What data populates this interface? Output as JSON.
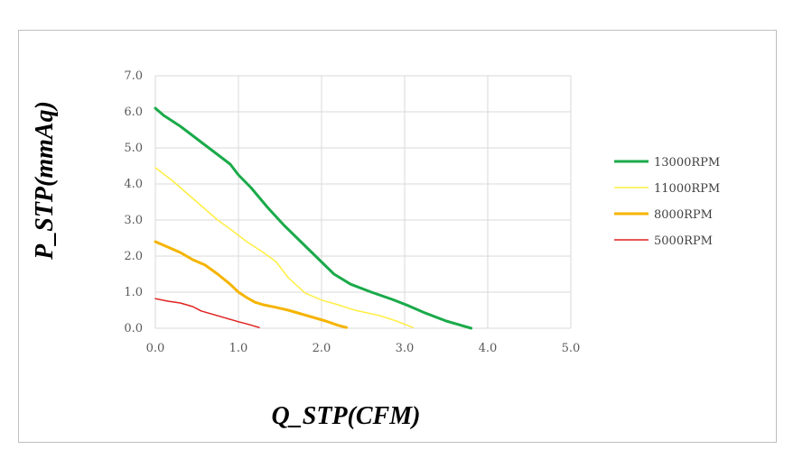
{
  "chart_data": {
    "type": "line",
    "xlabel": "Q_STP(CFM)",
    "ylabel": "P_STP(mmAq)",
    "xlim": [
      0,
      5
    ],
    "ylim": [
      0,
      7
    ],
    "xticks": [
      "0.0",
      "1.0",
      "2.0",
      "3.0",
      "4.0",
      "5.0"
    ],
    "yticks": [
      "0.0",
      "1.0",
      "2.0",
      "3.0",
      "4.0",
      "5.0",
      "6.0",
      "7.0"
    ],
    "grid": true,
    "legend_position": "right",
    "series": [
      {
        "name": "13000RPM",
        "color": "#1aaa4a",
        "width": 3,
        "points": [
          [
            0.0,
            6.1
          ],
          [
            0.1,
            5.9
          ],
          [
            0.3,
            5.6
          ],
          [
            0.5,
            5.25
          ],
          [
            0.7,
            4.9
          ],
          [
            0.9,
            4.55
          ],
          [
            1.0,
            4.25
          ],
          [
            1.15,
            3.9
          ],
          [
            1.35,
            3.35
          ],
          [
            1.55,
            2.85
          ],
          [
            1.75,
            2.4
          ],
          [
            1.95,
            1.95
          ],
          [
            2.15,
            1.5
          ],
          [
            2.35,
            1.22
          ],
          [
            2.6,
            1.0
          ],
          [
            2.85,
            0.8
          ],
          [
            3.05,
            0.62
          ],
          [
            3.25,
            0.42
          ],
          [
            3.5,
            0.2
          ],
          [
            3.8,
            0.0
          ]
        ]
      },
      {
        "name": "11000RPM",
        "color": "#ffee44",
        "width": 1.5,
        "points": [
          [
            0.0,
            4.45
          ],
          [
            0.2,
            4.1
          ],
          [
            0.4,
            3.7
          ],
          [
            0.6,
            3.3
          ],
          [
            0.75,
            3.0
          ],
          [
            0.9,
            2.75
          ],
          [
            1.1,
            2.4
          ],
          [
            1.3,
            2.1
          ],
          [
            1.45,
            1.85
          ],
          [
            1.6,
            1.4
          ],
          [
            1.8,
            0.98
          ],
          [
            2.0,
            0.78
          ],
          [
            2.2,
            0.65
          ],
          [
            2.4,
            0.5
          ],
          [
            2.7,
            0.35
          ],
          [
            2.9,
            0.2
          ],
          [
            3.1,
            0.02
          ]
        ]
      },
      {
        "name": "8000RPM",
        "color": "#f5b400",
        "width": 3,
        "points": [
          [
            0.0,
            2.4
          ],
          [
            0.15,
            2.25
          ],
          [
            0.3,
            2.1
          ],
          [
            0.45,
            1.9
          ],
          [
            0.6,
            1.75
          ],
          [
            0.75,
            1.5
          ],
          [
            0.9,
            1.22
          ],
          [
            1.0,
            1.0
          ],
          [
            1.1,
            0.85
          ],
          [
            1.2,
            0.72
          ],
          [
            1.3,
            0.65
          ],
          [
            1.45,
            0.58
          ],
          [
            1.6,
            0.5
          ],
          [
            1.75,
            0.4
          ],
          [
            1.9,
            0.3
          ],
          [
            2.05,
            0.2
          ],
          [
            2.2,
            0.08
          ],
          [
            2.3,
            0.02
          ]
        ]
      },
      {
        "name": "5000RPM",
        "color": "#e02020",
        "width": 1.5,
        "points": [
          [
            0.0,
            0.82
          ],
          [
            0.15,
            0.75
          ],
          [
            0.3,
            0.7
          ],
          [
            0.45,
            0.6
          ],
          [
            0.55,
            0.48
          ],
          [
            0.7,
            0.38
          ],
          [
            0.85,
            0.28
          ],
          [
            1.0,
            0.18
          ],
          [
            1.1,
            0.12
          ],
          [
            1.25,
            0.02
          ]
        ]
      }
    ]
  }
}
